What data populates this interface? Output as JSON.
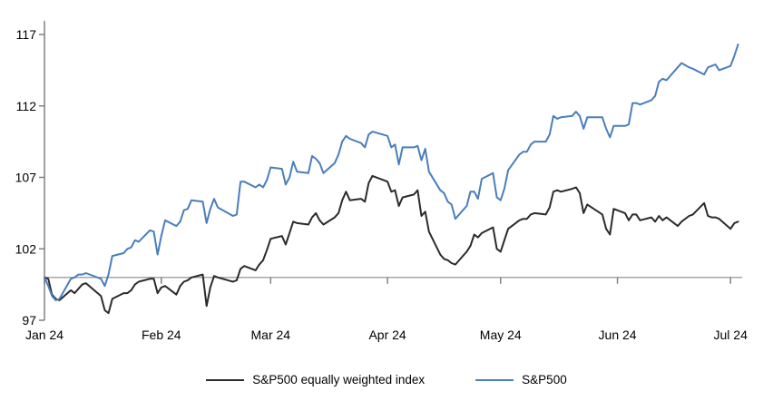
{
  "chart_data": {
    "type": "line",
    "title": "",
    "description": "Indexed performance (start = 100) of S&P500 vs S&P500 equally weighted index, Jan 2024 to Jul 2024",
    "x_axis": {
      "tick_labels": [
        "Jan 24",
        "Feb 24",
        "Mar 24",
        "Apr 24",
        "May 24",
        "Jun 24",
        "Jul 24"
      ],
      "tick_day_offsets": [
        0,
        31,
        60,
        91,
        121,
        152,
        182
      ],
      "range_days": [
        0,
        185
      ]
    },
    "y_axis": {
      "tick_labels": [
        "97",
        "102",
        "107",
        "112",
        "117"
      ],
      "tick_values": [
        97,
        102,
        107,
        112,
        117
      ],
      "min": 97,
      "max": 117,
      "baseline_value": 100
    },
    "grid": "none",
    "legend_position": "bottom-center",
    "days": [
      0,
      1,
      2,
      3,
      4,
      7,
      8,
      9,
      10,
      11,
      15,
      16,
      17,
      18,
      21,
      22,
      23,
      24,
      25,
      28,
      29,
      30,
      31,
      32,
      35,
      36,
      37,
      38,
      39,
      42,
      43,
      44,
      45,
      46,
      50,
      51,
      52,
      53,
      56,
      57,
      58,
      59,
      60,
      63,
      64,
      65,
      66,
      67,
      70,
      71,
      72,
      73,
      74,
      77,
      78,
      79,
      80,
      81,
      84,
      85,
      86,
      87,
      91,
      92,
      93,
      94,
      95,
      98,
      99,
      100,
      101,
      102,
      105,
      106,
      107,
      108,
      109,
      112,
      113,
      114,
      115,
      116,
      119,
      120,
      121,
      122,
      123,
      126,
      127,
      128,
      129,
      130,
      133,
      134,
      135,
      136,
      137,
      140,
      141,
      142,
      143,
      144,
      148,
      149,
      150,
      151,
      154,
      155,
      156,
      157,
      158,
      161,
      162,
      163,
      164,
      165,
      168,
      169,
      171,
      172,
      175,
      176,
      177,
      178,
      179,
      182,
      183,
      184
    ],
    "series": [
      {
        "name": "S&P500 equally weighted index",
        "color": "#2b2b2b",
        "values": [
          100.0,
          99.9,
          98.8,
          98.5,
          98.4,
          99.1,
          98.9,
          99.2,
          99.5,
          99.6,
          98.7,
          97.7,
          97.5,
          98.5,
          98.9,
          98.9,
          99.1,
          99.5,
          99.7,
          99.9,
          99.9,
          98.9,
          99.3,
          99.4,
          98.8,
          99.4,
          99.7,
          99.8,
          100.0,
          100.2,
          98.0,
          99.3,
          100.1,
          100.0,
          99.7,
          99.8,
          100.6,
          100.8,
          100.5,
          100.9,
          101.2,
          101.9,
          102.7,
          102.9,
          102.3,
          103.1,
          103.9,
          103.8,
          103.7,
          104.2,
          104.5,
          104.0,
          103.7,
          104.2,
          104.5,
          105.4,
          106.0,
          105.4,
          105.5,
          105.3,
          106.6,
          107.1,
          106.7,
          106.0,
          106.1,
          105.0,
          105.6,
          105.8,
          106.1,
          104.3,
          104.6,
          103.2,
          101.6,
          101.3,
          101.2,
          101.0,
          100.9,
          101.8,
          102.2,
          103.0,
          102.8,
          103.1,
          103.5,
          102.0,
          101.8,
          102.6,
          103.4,
          104.0,
          104.1,
          104.1,
          104.4,
          104.5,
          104.4,
          104.9,
          106.0,
          106.1,
          106.0,
          106.2,
          106.3,
          105.9,
          104.5,
          105.1,
          104.4,
          103.4,
          103.0,
          104.8,
          104.5,
          104.0,
          104.4,
          104.4,
          104.0,
          104.2,
          103.9,
          104.3,
          104.0,
          104.2,
          103.6,
          103.9,
          104.3,
          104.4,
          105.2,
          104.3,
          104.2,
          104.2,
          104.1,
          103.4,
          103.8,
          103.9
        ]
      },
      {
        "name": "S&P500",
        "color": "#4a7ebc",
        "values": [
          100.0,
          99.4,
          98.7,
          98.4,
          98.5,
          99.9,
          100.0,
          100.2,
          100.2,
          100.3,
          99.9,
          99.4,
          100.2,
          101.5,
          101.7,
          102.0,
          102.1,
          102.6,
          102.5,
          103.3,
          103.2,
          101.6,
          102.9,
          104.0,
          103.6,
          103.9,
          104.7,
          104.8,
          105.4,
          105.3,
          103.8,
          104.8,
          105.5,
          104.9,
          104.3,
          104.4,
          106.7,
          106.7,
          106.3,
          106.5,
          106.3,
          106.8,
          107.7,
          107.6,
          106.5,
          107.0,
          108.1,
          107.4,
          107.3,
          108.5,
          108.3,
          108.0,
          107.3,
          108.0,
          108.6,
          109.5,
          109.9,
          109.7,
          109.4,
          109.1,
          110.0,
          110.2,
          109.9,
          109.1,
          109.3,
          107.9,
          109.1,
          109.1,
          109.2,
          108.2,
          109.0,
          107.4,
          106.1,
          105.9,
          105.3,
          105.1,
          104.1,
          105.0,
          106.0,
          106.0,
          105.5,
          106.9,
          107.3,
          105.6,
          105.4,
          106.2,
          107.5,
          108.6,
          108.8,
          108.8,
          109.3,
          109.5,
          109.5,
          110.0,
          111.3,
          111.1,
          111.2,
          111.3,
          111.6,
          111.3,
          110.4,
          111.2,
          111.2,
          110.4,
          109.8,
          110.6,
          110.6,
          110.7,
          112.2,
          112.2,
          112.1,
          112.4,
          112.7,
          113.7,
          113.9,
          113.8,
          114.7,
          115.0,
          114.7,
          114.6,
          114.2,
          114.7,
          114.8,
          114.9,
          114.5,
          114.8,
          115.5,
          116.3
        ]
      }
    ]
  },
  "colors": {
    "background": "#ffffff",
    "axis": "#808080",
    "baseline": "#a6a6a6",
    "text": "#000000"
  }
}
